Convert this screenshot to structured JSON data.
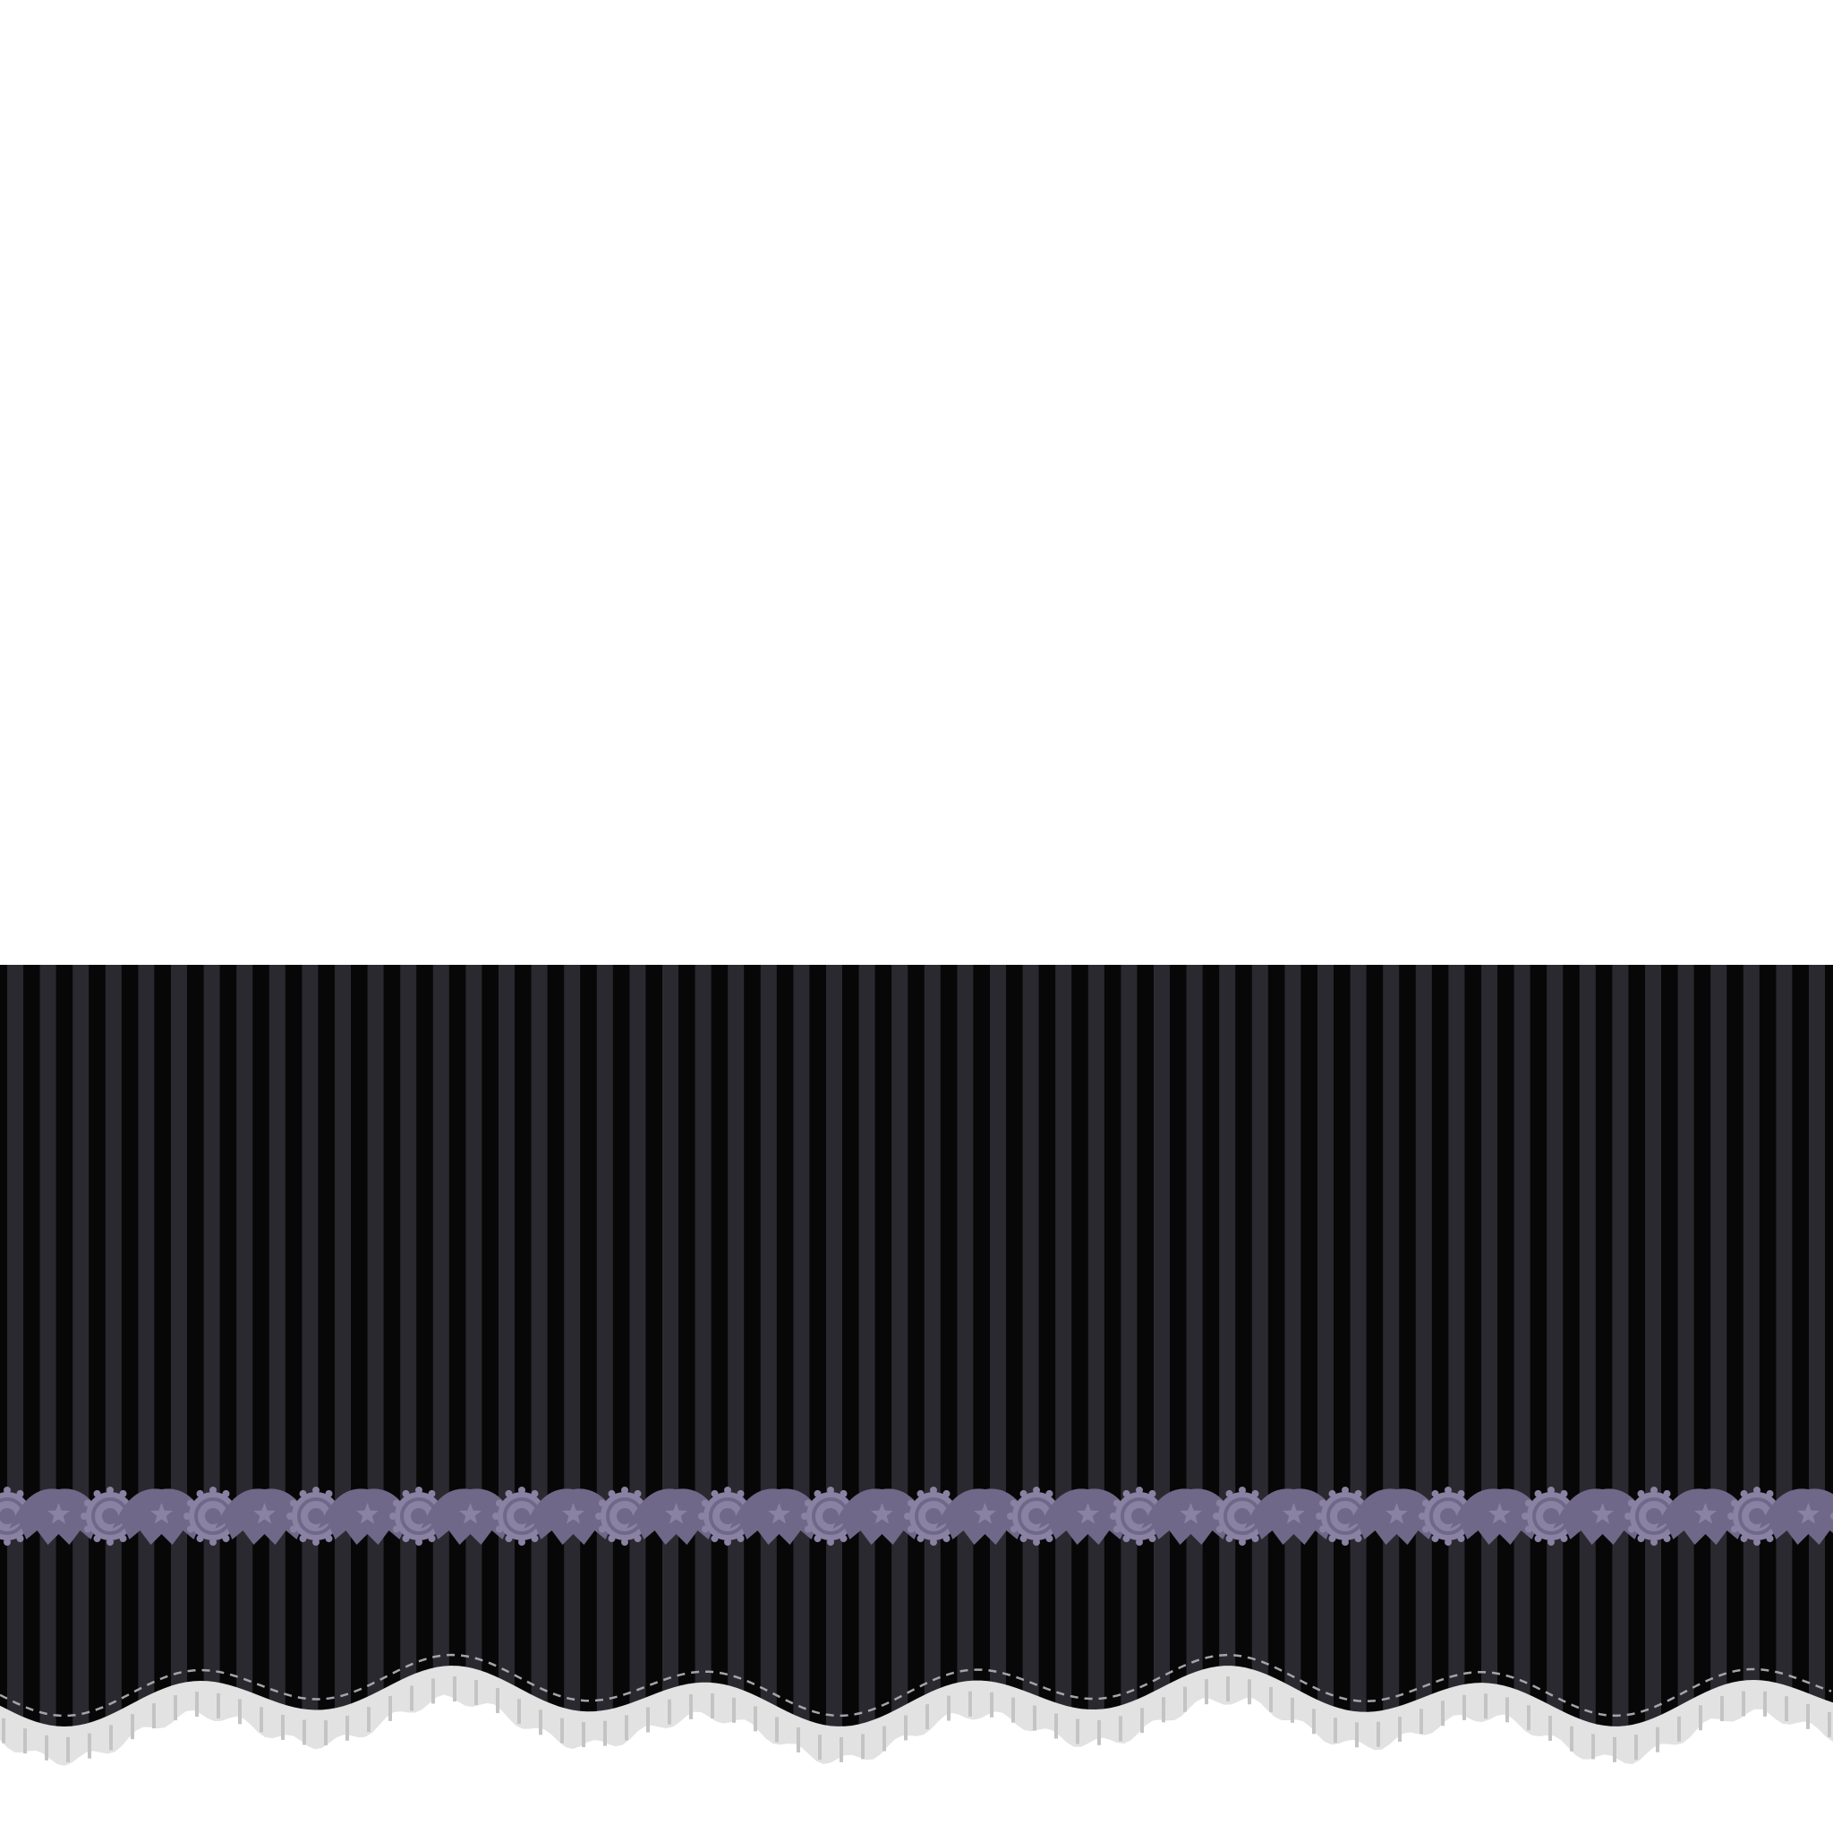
{
  "artwork": {
    "subject": "striped-skirt-with-lace-border",
    "colors": {
      "background": "#ffffff",
      "skirt_base": "#070707",
      "stripe": "#2b2930",
      "motif": "#8a82a3",
      "motif_dark": "#6f6888",
      "stitch": "#a6a3ab",
      "ruffle": "#e2e2e2",
      "ruffle_shadow": "#c4c4c4"
    },
    "motifs": {
      "medallion_icon": "rosette-medallion-icon",
      "bat_icon": "bat-wing-icon",
      "star_icon": "star-icon"
    }
  }
}
